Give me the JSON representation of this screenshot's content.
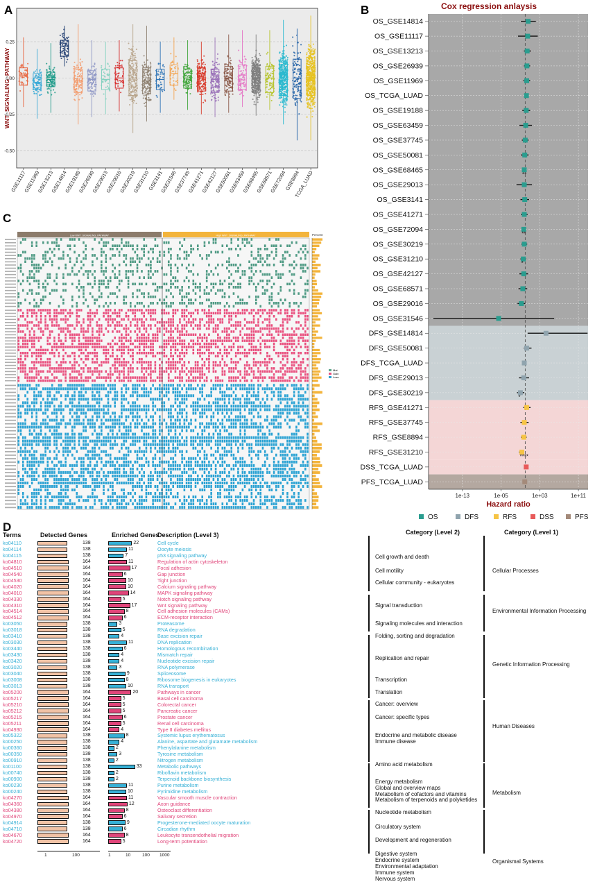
{
  "panel_labels": {
    "a": "A",
    "b": "B",
    "c": "C",
    "d": "D"
  },
  "chart_data": [
    {
      "type": "box",
      "panel": "A",
      "ylabel": "WNT_SIGNALING_PATHWAY",
      "ylim": [
        -0.62,
        0.48
      ],
      "yticks": [
        -0.5,
        -0.25,
        0.0,
        0.25
      ],
      "ytick_labels": [
        "-0.50",
        "-0.25",
        "0.00",
        "0.25"
      ],
      "categories": [
        "GSE11117",
        "GSE11969",
        "GSE13213",
        "GSE14814",
        "GSE19188",
        "GSE26939",
        "GSE29013",
        "GSE29016",
        "GSE30219",
        "GSE31210",
        "GSE3141",
        "GSE31546",
        "GSE37745",
        "GSE41271",
        "GSE42127",
        "GSE50081",
        "GSE63459",
        "GSE68465",
        "GSE68571",
        "GSE72094",
        "GSE8894",
        "TCGA_LUAD"
      ],
      "colors": [
        "#e8663f",
        "#3aa9d6",
        "#1f9b8a",
        "#1c3a6e",
        "#f39a6b",
        "#8e97c6",
        "#85d1c0",
        "#d62a2a",
        "#b7a38a",
        "#8d7f6f",
        "#2f74b6",
        "#f3a450",
        "#3fa53a",
        "#d83a2a",
        "#9b72b9",
        "#8b5a4a",
        "#e477c6",
        "#7f7f7f",
        "#b5c32a",
        "#29b9cf",
        "#1f5fa6",
        "#e6c21f"
      ],
      "q1": [
        -0.05,
        -0.08,
        -0.06,
        0.15,
        -0.1,
        -0.09,
        -0.08,
        -0.07,
        -0.12,
        -0.11,
        -0.08,
        -0.05,
        -0.07,
        -0.09,
        -0.1,
        -0.09,
        -0.08,
        -0.1,
        -0.1,
        -0.12,
        -0.14,
        -0.12
      ],
      "median": [
        0.02,
        -0.03,
        -0.01,
        0.22,
        -0.02,
        -0.01,
        -0.01,
        0.0,
        0.0,
        -0.02,
        -0.01,
        0.03,
        0.0,
        0.0,
        -0.01,
        0.0,
        0.02,
        0.0,
        0.0,
        0.0,
        0.0,
        0.0
      ],
      "q3": [
        0.07,
        0.03,
        0.04,
        0.26,
        0.06,
        0.05,
        0.06,
        0.07,
        0.12,
        0.07,
        0.06,
        0.09,
        0.06,
        0.07,
        0.06,
        0.08,
        0.09,
        0.07,
        0.08,
        0.11,
        0.13,
        0.14
      ],
      "whisker_low": [
        -0.2,
        -0.28,
        -0.24,
        0.08,
        -0.32,
        -0.27,
        -0.25,
        -0.23,
        -0.38,
        -0.3,
        -0.24,
        -0.15,
        -0.22,
        -0.25,
        -0.27,
        -0.24,
        -0.2,
        -0.26,
        -0.22,
        -0.32,
        -0.43,
        -0.43
      ],
      "whisker_high": [
        0.28,
        0.2,
        0.24,
        0.36,
        0.37,
        0.26,
        0.25,
        0.26,
        0.37,
        0.36,
        0.25,
        0.28,
        0.26,
        0.25,
        0.28,
        0.3,
        0.33,
        0.3,
        0.33,
        0.4,
        0.34,
        0.43
      ]
    },
    {
      "type": "forest",
      "panel": "B",
      "title": "Cox regression anlaysis",
      "xlabel": "Hazard ratio",
      "xscale": "log10",
      "xlim_exp": [
        -20,
        13
      ],
      "xticks_exp": [
        -13,
        -5,
        3,
        11
      ],
      "xtick_labels": [
        "1e-13",
        "1e-05",
        "1e+03",
        "1e+11"
      ],
      "rows": [
        {
          "label": "OS_GSE14814",
          "group": "OS",
          "hr_exp": 0.6,
          "lo_exp": -0.9,
          "hi_exp": 2.2,
          "sig": ""
        },
        {
          "label": "OS_GSE11117",
          "group": "OS",
          "hr_exp": 0.5,
          "lo_exp": -1.5,
          "hi_exp": 2.6,
          "sig": ""
        },
        {
          "label": "OS_GSE13213",
          "group": "OS",
          "hr_exp": 0.4,
          "lo_exp": -0.3,
          "hi_exp": 1.2,
          "sig": ""
        },
        {
          "label": "OS_GSE26939",
          "group": "OS",
          "hr_exp": 0.35,
          "lo_exp": -0.3,
          "hi_exp": 1.0,
          "sig": ""
        },
        {
          "label": "OS_GSE11969",
          "group": "OS",
          "hr_exp": 0.3,
          "lo_exp": -0.4,
          "hi_exp": 1.0,
          "sig": ""
        },
        {
          "label": "OS_TCGA_LUAD",
          "group": "OS",
          "hr_exp": 0.25,
          "lo_exp": -0.1,
          "hi_exp": 0.6,
          "sig": ""
        },
        {
          "label": "OS_GSE19188",
          "group": "OS",
          "hr_exp": 0.2,
          "lo_exp": -0.6,
          "hi_exp": 1.0,
          "sig": ""
        },
        {
          "label": "OS_GSE63459",
          "group": "OS",
          "hr_exp": 0.1,
          "lo_exp": -1.2,
          "hi_exp": 1.4,
          "sig": ""
        },
        {
          "label": "OS_GSE37745",
          "group": "OS",
          "hr_exp": 0.0,
          "lo_exp": -0.7,
          "hi_exp": 0.7,
          "sig": ""
        },
        {
          "label": "OS_GSE50081",
          "group": "OS",
          "hr_exp": -0.1,
          "lo_exp": -0.9,
          "hi_exp": 0.7,
          "sig": ""
        },
        {
          "label": "OS_GSE68465",
          "group": "OS",
          "hr_exp": -0.2,
          "lo_exp": -0.6,
          "hi_exp": 0.2,
          "sig": "**"
        },
        {
          "label": "OS_GSE29013",
          "group": "OS",
          "hr_exp": -0.2,
          "lo_exp": -1.8,
          "hi_exp": 1.4,
          "sig": ""
        },
        {
          "label": "OS_GSE3141",
          "group": "OS",
          "hr_exp": -0.1,
          "lo_exp": -1.0,
          "hi_exp": 0.8,
          "sig": ""
        },
        {
          "label": "OS_GSE41271",
          "group": "OS",
          "hr_exp": -0.2,
          "lo_exp": -0.9,
          "hi_exp": 0.5,
          "sig": ""
        },
        {
          "label": "OS_GSE72094",
          "group": "OS",
          "hr_exp": -0.3,
          "lo_exp": -0.7,
          "hi_exp": 0.1,
          "sig": "**"
        },
        {
          "label": "OS_GSE30219",
          "group": "OS",
          "hr_exp": -0.2,
          "lo_exp": -0.8,
          "hi_exp": 0.4,
          "sig": ""
        },
        {
          "label": "OS_GSE31210",
          "group": "OS",
          "hr_exp": -0.4,
          "lo_exp": -1.0,
          "hi_exp": 0.2,
          "sig": "*"
        },
        {
          "label": "OS_GSE42127",
          "group": "OS",
          "hr_exp": -0.3,
          "lo_exp": -1.2,
          "hi_exp": 0.6,
          "sig": ""
        },
        {
          "label": "OS_GSE68571",
          "group": "OS",
          "hr_exp": -0.5,
          "lo_exp": -1.4,
          "hi_exp": 0.4,
          "sig": ""
        },
        {
          "label": "OS_GSE29016",
          "group": "OS",
          "hr_exp": -0.8,
          "lo_exp": -1.6,
          "hi_exp": 0.0,
          "sig": ""
        },
        {
          "label": "OS_GSE31546",
          "group": "OS",
          "hr_exp": -5.5,
          "lo_exp": -19.0,
          "hi_exp": 6.0,
          "sig": ""
        },
        {
          "label": "DFS_GSE14814",
          "group": "DFS",
          "hr_exp": 4.3,
          "lo_exp": 0.5,
          "hi_exp": 12.9,
          "sig": ""
        },
        {
          "label": "DFS_GSE50081",
          "group": "DFS",
          "hr_exp": 0.3,
          "lo_exp": -0.3,
          "hi_exp": 1.3,
          "sig": ""
        },
        {
          "label": "DFS_TCGA_LUAD",
          "group": "DFS",
          "hr_exp": -0.2,
          "lo_exp": -0.5,
          "hi_exp": 0.1,
          "sig": ""
        },
        {
          "label": "DFS_GSE29013",
          "group": "DFS",
          "hr_exp": -0.3,
          "lo_exp": -1.3,
          "hi_exp": 0.8,
          "sig": ""
        },
        {
          "label": "DFS_GSE30219",
          "group": "DFS",
          "hr_exp": -1.0,
          "lo_exp": -1.7,
          "hi_exp": -0.2,
          "sig": "*"
        },
        {
          "label": "RFS_GSE41271",
          "group": "RFS",
          "hr_exp": 0.3,
          "lo_exp": -0.4,
          "hi_exp": 1.1,
          "sig": ""
        },
        {
          "label": "RFS_GSE37745",
          "group": "RFS",
          "hr_exp": -0.2,
          "lo_exp": -1.0,
          "hi_exp": 0.7,
          "sig": ""
        },
        {
          "label": "RFS_GSE8894",
          "group": "RFS",
          "hr_exp": -0.3,
          "lo_exp": -0.9,
          "hi_exp": 0.3,
          "sig": ""
        },
        {
          "label": "RFS_GSE31210",
          "group": "RFS",
          "hr_exp": -0.7,
          "lo_exp": -1.3,
          "hi_exp": -0.2,
          "sig": "****"
        },
        {
          "label": "DSS_TCGA_LUAD",
          "group": "DSS",
          "hr_exp": 0.2,
          "lo_exp": -0.1,
          "hi_exp": 0.5,
          "sig": ""
        },
        {
          "label": "PFS_TCGA_LUAD",
          "group": "PFS",
          "hr_exp": -0.1,
          "lo_exp": -0.3,
          "hi_exp": 0.1,
          "sig": ""
        }
      ],
      "legend": [
        {
          "name": "OS",
          "color": "#2a9d8f"
        },
        {
          "name": "DFS",
          "color": "#90a4ae"
        },
        {
          "name": "RFS",
          "color": "#f6c445"
        },
        {
          "name": "DSS",
          "color": "#e85a5a"
        },
        {
          "name": "PFS",
          "color": "#a48a7a"
        }
      ]
    },
    {
      "type": "heatmap",
      "panel": "C",
      "group_labels": [
        "Low WNT_SIGNALING_PATHWAY",
        "High WNT_SIGNALING_PATHWAY"
      ],
      "percent_label": "Percent",
      "legend": [
        "Mut",
        "Gain",
        "Loss"
      ],
      "legend_colors": [
        "#5aa58a",
        "#e8517e",
        "#2a9fd0"
      ],
      "section_colors": [
        "#4f9a84",
        "#e94f7e",
        "#2aa2d3"
      ]
    }
  ],
  "panel_d": {
    "headers": {
      "terms": "Terms",
      "detected": "Detected Genes",
      "enriched": "Enriched Genes",
      "description": "Description (Level 3)",
      "level2": "Category (Level 2)",
      "level1": "Category (Level 1)"
    },
    "axis_detected": [
      "1",
      "100"
    ],
    "axis_enriched": [
      "1",
      "10",
      "100",
      "1000"
    ],
    "color_blue": "#36b0d6",
    "color_pink": "#e0457a",
    "rows": [
      {
        "term": "ko04110",
        "detected": 138,
        "enriched": 22,
        "desc": "Cell cycle",
        "c": "b"
      },
      {
        "term": "ko04114",
        "detected": 138,
        "enriched": 11,
        "desc": "Oocyte meiosis",
        "c": "b"
      },
      {
        "term": "ko04115",
        "detected": 138,
        "enriched": 7,
        "desc": "p53 signaling pathway",
        "c": "b"
      },
      {
        "term": "ko04810",
        "detected": 164,
        "enriched": 11,
        "desc": "Regulation of actin cytoskeleton",
        "c": "p"
      },
      {
        "term": "ko04510",
        "detected": 164,
        "enriched": 17,
        "desc": "Focal adhesion",
        "c": "p"
      },
      {
        "term": "ko04540",
        "detected": 164,
        "enriched": 6,
        "desc": "Gap junction",
        "c": "p"
      },
      {
        "term": "ko04530",
        "detected": 164,
        "enriched": 10,
        "desc": "Tight junction",
        "c": "p"
      },
      {
        "term": "ko04020",
        "detected": 164,
        "enriched": 10,
        "desc": "Calcium signaling pathway",
        "c": "p"
      },
      {
        "term": "ko04010",
        "detected": 164,
        "enriched": 14,
        "desc": "MAPK signaling pathway",
        "c": "p"
      },
      {
        "term": "ko04330",
        "detected": 164,
        "enriched": 5,
        "desc": "Notch signaling pathway",
        "c": "p"
      },
      {
        "term": "ko04310",
        "detected": 164,
        "enriched": 17,
        "desc": "Wnt signaling pathway",
        "c": "p"
      },
      {
        "term": "ko04514",
        "detected": 164,
        "enriched": 8,
        "desc": "Cell adhesion molecules (CAMs)",
        "c": "p"
      },
      {
        "term": "ko04512",
        "detected": 164,
        "enriched": 6,
        "desc": "ECM-receptor interaction",
        "c": "p"
      },
      {
        "term": "ko03050",
        "detected": 138,
        "enriched": 3,
        "desc": "Proteasome",
        "c": "b"
      },
      {
        "term": "ko03018",
        "detected": 138,
        "enriched": 5,
        "desc": "RNA degradation",
        "c": "b"
      },
      {
        "term": "ko03410",
        "detected": 138,
        "enriched": 4,
        "desc": "Base excision repair",
        "c": "b"
      },
      {
        "term": "ko03030",
        "detected": 138,
        "enriched": 11,
        "desc": "DNA replication",
        "c": "b"
      },
      {
        "term": "ko03440",
        "detected": 138,
        "enriched": 6,
        "desc": "Homologous recombination",
        "c": "b"
      },
      {
        "term": "ko03430",
        "detected": 138,
        "enriched": 4,
        "desc": "Mismatch repair",
        "c": "b"
      },
      {
        "term": "ko03420",
        "detected": 138,
        "enriched": 4,
        "desc": "Nucleotide excision repair",
        "c": "b"
      },
      {
        "term": "ko03020",
        "detected": 138,
        "enriched": 3,
        "desc": "RNA polymerase",
        "c": "b"
      },
      {
        "term": "ko03040",
        "detected": 138,
        "enriched": 9,
        "desc": "Spliceosome",
        "c": "b"
      },
      {
        "term": "ko03008",
        "detected": 138,
        "enriched": 8,
        "desc": "Ribosome biogenesis in eukaryotes",
        "c": "b"
      },
      {
        "term": "ko03013",
        "detected": 138,
        "enriched": 10,
        "desc": "RNA transport",
        "c": "b"
      },
      {
        "term": "ko05200",
        "detected": 164,
        "enriched": 20,
        "desc": "Pathways in cancer",
        "c": "p"
      },
      {
        "term": "ko05217",
        "detected": 164,
        "enriched": 5,
        "desc": "Basal cell carcinoma",
        "c": "p"
      },
      {
        "term": "ko05210",
        "detected": 164,
        "enriched": 5,
        "desc": "Colorectal cancer",
        "c": "p"
      },
      {
        "term": "ko05212",
        "detected": 164,
        "enriched": 5,
        "desc": "Pancreatic cancer",
        "c": "p"
      },
      {
        "term": "ko05215",
        "detected": 164,
        "enriched": 6,
        "desc": "Prostate cancer",
        "c": "p"
      },
      {
        "term": "ko05211",
        "detected": 164,
        "enriched": 5,
        "desc": "Renal cell carcinoma",
        "c": "p"
      },
      {
        "term": "ko04930",
        "detected": 164,
        "enriched": 4,
        "desc": "Type II diabetes mellitus",
        "c": "p"
      },
      {
        "term": "ko05322",
        "detected": 138,
        "enriched": 8,
        "desc": "Systemic lupus erythematosus",
        "c": "b"
      },
      {
        "term": "ko00250",
        "detected": 138,
        "enriched": 4,
        "desc": "Alanine, aspartate and glutamate metabolism",
        "c": "b"
      },
      {
        "term": "ko00360",
        "detected": 138,
        "enriched": 2,
        "desc": "Phenylalanine metabolism",
        "c": "b"
      },
      {
        "term": "ko00350",
        "detected": 138,
        "enriched": 3,
        "desc": "Tyrosine metabolism",
        "c": "b"
      },
      {
        "term": "ko00910",
        "detected": 138,
        "enriched": 2,
        "desc": "Nitrogen metabolism",
        "c": "b"
      },
      {
        "term": "ko01100",
        "detected": 138,
        "enriched": 33,
        "desc": "Metabolic pathways",
        "c": "b"
      },
      {
        "term": "ko00740",
        "detected": 138,
        "enriched": 2,
        "desc": "Riboflavin metabolism",
        "c": "b"
      },
      {
        "term": "ko00900",
        "detected": 138,
        "enriched": 2,
        "desc": "Terpenoid backbone biosynthesis",
        "c": "b"
      },
      {
        "term": "ko00230",
        "detected": 138,
        "enriched": 11,
        "desc": "Purine metabolism",
        "c": "b"
      },
      {
        "term": "ko00240",
        "detected": 138,
        "enriched": 10,
        "desc": "Pyrimidine metabolism",
        "c": "b"
      },
      {
        "term": "ko04270",
        "detected": 164,
        "enriched": 11,
        "desc": "Vascular smooth muscle contraction",
        "c": "p"
      },
      {
        "term": "ko04360",
        "detected": 164,
        "enriched": 12,
        "desc": "Axon guidance",
        "c": "p"
      },
      {
        "term": "ko04380",
        "detected": 164,
        "enriched": 8,
        "desc": "Osteoclast differentiation",
        "c": "p"
      },
      {
        "term": "ko04970",
        "detected": 164,
        "enriched": 6,
        "desc": "Salivary secretion",
        "c": "p"
      },
      {
        "term": "ko04914",
        "detected": 138,
        "enriched": 9,
        "desc": "Progesterone-mediated oocyte maturation",
        "c": "b"
      },
      {
        "term": "ko04710",
        "detected": 138,
        "enriched": 6,
        "desc": "Circadian rhythm",
        "c": "b"
      },
      {
        "term": "ko04670",
        "detected": 164,
        "enriched": 8,
        "desc": "Leukocyte transendothelial migration",
        "c": "p"
      },
      {
        "term": "ko04720",
        "detected": 164,
        "enriched": 5,
        "desc": "Long-term potentiation",
        "c": "p"
      }
    ],
    "level2": [
      "Cell growth and death",
      "Cell motility",
      "Cellular community - eukaryotes",
      "Signal transduction",
      "Signaling molecules and interaction",
      "Folding, sorting and degradation",
      "Replication and repair",
      "Transcription",
      "Translation",
      "Cancer: overview",
      "Cancer: specific types",
      "Endocrine and metabolic disease",
      "Immune disease",
      "Amino acid metabolism",
      "Energy metabolism",
      "Global and overview maps",
      "Metabolism of cofactors and vitamins",
      "Metabolism of terpenoids and polyketides",
      "Nucleotide metabolism",
      "Circulatory system",
      "Development and regeneration",
      "Digestive system",
      "Endocrine system",
      "Environmental adaptation",
      "Immune system",
      "Nervous system"
    ],
    "level1": [
      "Cellular Processes",
      "Environmental Information Processing",
      "Genetic Information Processing",
      "Human Diseases",
      "Metabolism",
      "Organismal Systems"
    ]
  }
}
